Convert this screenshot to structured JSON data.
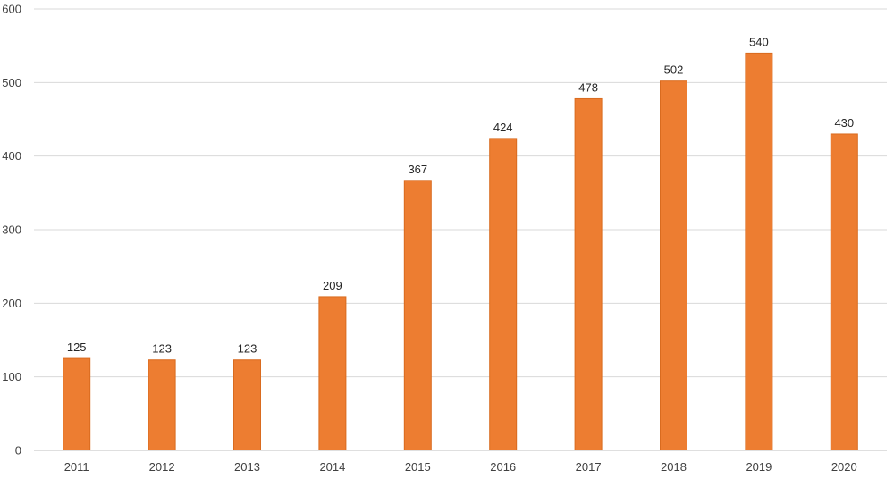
{
  "chart_data": {
    "type": "bar",
    "categories": [
      "2011",
      "2012",
      "2013",
      "2014",
      "2015",
      "2016",
      "2017",
      "2018",
      "2019",
      "2020"
    ],
    "values": [
      125,
      123,
      123,
      209,
      367,
      424,
      478,
      502,
      540,
      430
    ],
    "data_labels": [
      "125",
      "123",
      "123",
      "209",
      "367",
      "424",
      "478",
      "502",
      "540",
      "430"
    ],
    "title": "",
    "xlabel": "",
    "ylabel": "",
    "ylim": [
      0,
      600
    ],
    "yticks": [
      0,
      100,
      200,
      300,
      400,
      500,
      600
    ],
    "ytick_labels": [
      "0",
      "100",
      "200",
      "300",
      "400",
      "500",
      "600"
    ],
    "grid": true,
    "legend": "none",
    "bar_color": "#ed7d31",
    "bar_edge_color": "#d96b1f",
    "grid_color": "#d9d9d9"
  }
}
